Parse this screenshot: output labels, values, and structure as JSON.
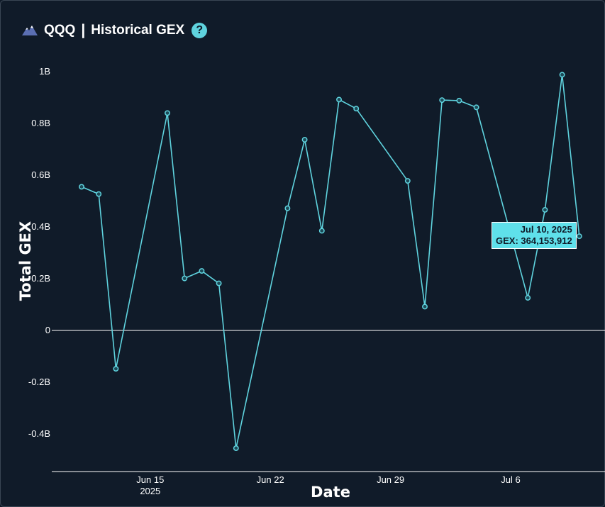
{
  "header": {
    "ticker": "QQQ",
    "separator": "|",
    "title": "Historical GEX",
    "help_glyph": "?",
    "logo_icon": "mountain-logo-icon"
  },
  "colors": {
    "background": "#101b29",
    "line": "#5fd3de",
    "zero_line": "#ffffff",
    "tooltip_bg": "#5fe0ea"
  },
  "tooltip": {
    "date": "Jul 10, 2025",
    "value": "GEX: 364,153,912"
  },
  "chart_data": {
    "type": "line",
    "xlabel": "Date",
    "ylabel": "Total GEX",
    "ylim": [
      -0.54,
      1.06
    ],
    "y_ticks": [
      {
        "value": 1.0,
        "label": "1B"
      },
      {
        "value": 0.8,
        "label": "0.8B"
      },
      {
        "value": 0.6,
        "label": "0.6B"
      },
      {
        "value": 0.4,
        "label": "0.4B"
      },
      {
        "value": 0.2,
        "label": "0.2B"
      },
      {
        "value": 0.0,
        "label": "0"
      },
      {
        "value": -0.2,
        "label": "-0.2B"
      },
      {
        "value": -0.4,
        "label": "-0.4B"
      }
    ],
    "x_ticks": [
      {
        "date": "2025-06-15",
        "label": "Jun 15",
        "sublabel": "2025"
      },
      {
        "date": "2025-06-22",
        "label": "Jun 22",
        "sublabel": ""
      },
      {
        "date": "2025-06-29",
        "label": "Jun 29",
        "sublabel": ""
      },
      {
        "date": "2025-07-06",
        "label": "Jul 6",
        "sublabel": ""
      }
    ],
    "xlim": [
      "2025-06-11",
      "2025-07-16"
    ],
    "grid": false,
    "series": [
      {
        "points": [
          {
            "x": "2025-06-11",
            "y": 0.555
          },
          {
            "x": "2025-06-12",
            "y": 0.527
          },
          {
            "x": "2025-06-13",
            "y": -0.148
          },
          {
            "x": "2025-06-16",
            "y": 0.84
          },
          {
            "x": "2025-06-17",
            "y": 0.201
          },
          {
            "x": "2025-06-18",
            "y": 0.23
          },
          {
            "x": "2025-06-19",
            "y": 0.182
          },
          {
            "x": "2025-06-20",
            "y": -0.455
          },
          {
            "x": "2025-06-23",
            "y": 0.472
          },
          {
            "x": "2025-06-24",
            "y": 0.737
          },
          {
            "x": "2025-06-25",
            "y": 0.385
          },
          {
            "x": "2025-06-26",
            "y": 0.892
          },
          {
            "x": "2025-06-27",
            "y": 0.857
          },
          {
            "x": "2025-06-30",
            "y": 0.578
          },
          {
            "x": "2025-07-01",
            "y": 0.092
          },
          {
            "x": "2025-07-02",
            "y": 0.89
          },
          {
            "x": "2025-07-03",
            "y": 0.888
          },
          {
            "x": "2025-07-04",
            "y": 0.862
          },
          {
            "x": "2025-07-07",
            "y": 0.126
          },
          {
            "x": "2025-07-08",
            "y": 0.466
          },
          {
            "x": "2025-07-09",
            "y": 0.988
          },
          {
            "x": "2025-07-10",
            "y": 0.364
          }
        ]
      }
    ]
  }
}
